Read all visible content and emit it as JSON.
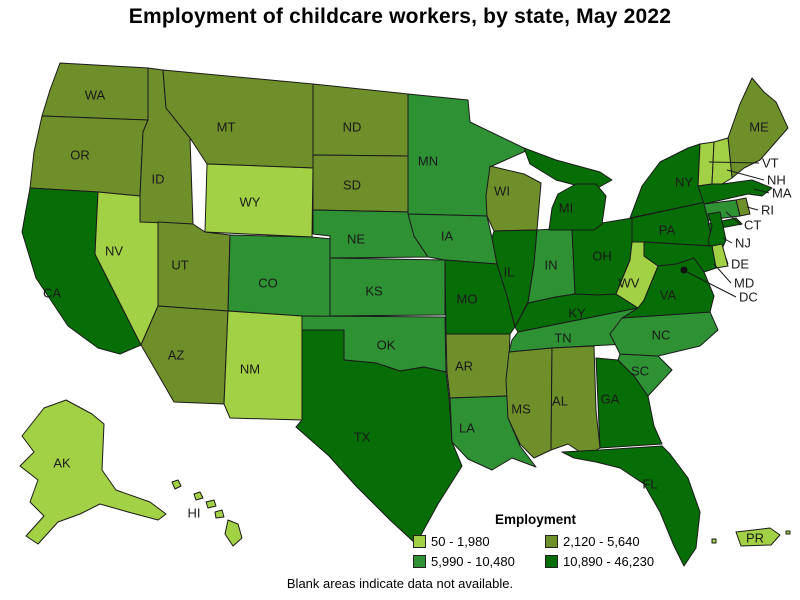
{
  "title": "Employment of childcare workers, by state, May 2022",
  "footnote": "Blank areas indicate data not available.",
  "legend": {
    "title": "Employment",
    "classes": [
      {
        "label": "50 - 1,980",
        "color": "#a3d145"
      },
      {
        "label": "2,120 - 5,640",
        "color": "#6f8f2b"
      },
      {
        "label": "5,990 - 10,480",
        "color": "#2e9234"
      },
      {
        "label": "10,890 - 46,230",
        "color": "#076d07"
      }
    ]
  },
  "map": {
    "border_color": "#1a1a1a",
    "label_color": "#1a1a1a",
    "dc_marker_color": "#111111",
    "states": [
      {
        "id": "WA",
        "label": "WA",
        "cls": 1
      },
      {
        "id": "OR",
        "label": "OR",
        "cls": 1
      },
      {
        "id": "CA",
        "label": "CA",
        "cls": 3
      },
      {
        "id": "NV",
        "label": "NV",
        "cls": 0
      },
      {
        "id": "ID",
        "label": "ID",
        "cls": 1
      },
      {
        "id": "MT",
        "label": "MT",
        "cls": 1
      },
      {
        "id": "WY",
        "label": "WY",
        "cls": 0
      },
      {
        "id": "UT",
        "label": "UT",
        "cls": 1
      },
      {
        "id": "CO",
        "label": "CO",
        "cls": 2
      },
      {
        "id": "AZ",
        "label": "AZ",
        "cls": 1
      },
      {
        "id": "NM",
        "label": "NM",
        "cls": 0
      },
      {
        "id": "ND",
        "label": "ND",
        "cls": 1
      },
      {
        "id": "SD",
        "label": "SD",
        "cls": 1
      },
      {
        "id": "NE",
        "label": "NE",
        "cls": 2
      },
      {
        "id": "KS",
        "label": "KS",
        "cls": 2
      },
      {
        "id": "OK",
        "label": "OK",
        "cls": 2
      },
      {
        "id": "TX",
        "label": "TX",
        "cls": 3
      },
      {
        "id": "MN",
        "label": "MN",
        "cls": 2
      },
      {
        "id": "IA",
        "label": "IA",
        "cls": 2
      },
      {
        "id": "MO",
        "label": "MO",
        "cls": 3
      },
      {
        "id": "AR",
        "label": "AR",
        "cls": 1
      },
      {
        "id": "LA",
        "label": "LA",
        "cls": 2
      },
      {
        "id": "WI",
        "label": "WI",
        "cls": 1
      },
      {
        "id": "IL",
        "label": "IL",
        "cls": 3
      },
      {
        "id": "IN",
        "label": "IN",
        "cls": 2
      },
      {
        "id": "OH",
        "label": "OH",
        "cls": 3
      },
      {
        "id": "MI",
        "label": "MI",
        "cls": 3
      },
      {
        "id": "KY",
        "label": "KY",
        "cls": 3
      },
      {
        "id": "TN",
        "label": "TN",
        "cls": 2
      },
      {
        "id": "MS",
        "label": "MS",
        "cls": 1
      },
      {
        "id": "AL",
        "label": "AL",
        "cls": 1
      },
      {
        "id": "GA",
        "label": "GA",
        "cls": 3
      },
      {
        "id": "FL",
        "label": "FL",
        "cls": 3
      },
      {
        "id": "SC",
        "label": "SC",
        "cls": 2
      },
      {
        "id": "NC",
        "label": "NC",
        "cls": 2
      },
      {
        "id": "VA",
        "label": "VA",
        "cls": 3
      },
      {
        "id": "WV",
        "label": "WV",
        "cls": 0
      },
      {
        "id": "PA",
        "label": "PA",
        "cls": 3
      },
      {
        "id": "NY",
        "label": "NY",
        "cls": 3
      },
      {
        "id": "ME",
        "label": "ME",
        "cls": 1
      },
      {
        "id": "VT",
        "label": "VT",
        "cls": 0
      },
      {
        "id": "NH",
        "label": "NH",
        "cls": 0
      },
      {
        "id": "MA",
        "label": "MA",
        "cls": 3
      },
      {
        "id": "RI",
        "label": "RI",
        "cls": 1
      },
      {
        "id": "CT",
        "label": "CT",
        "cls": 2
      },
      {
        "id": "NJ",
        "label": "NJ",
        "cls": 3
      },
      {
        "id": "DE",
        "label": "DE",
        "cls": 0
      },
      {
        "id": "MD",
        "label": "MD",
        "cls": 3
      },
      {
        "id": "DC",
        "label": "DC",
        "cls": null,
        "marker": "dot"
      },
      {
        "id": "AK",
        "label": "AK",
        "cls": 0
      },
      {
        "id": "HI",
        "label": "HI",
        "cls": 0
      },
      {
        "id": "PR",
        "label": "PR",
        "cls": 0
      }
    ]
  }
}
